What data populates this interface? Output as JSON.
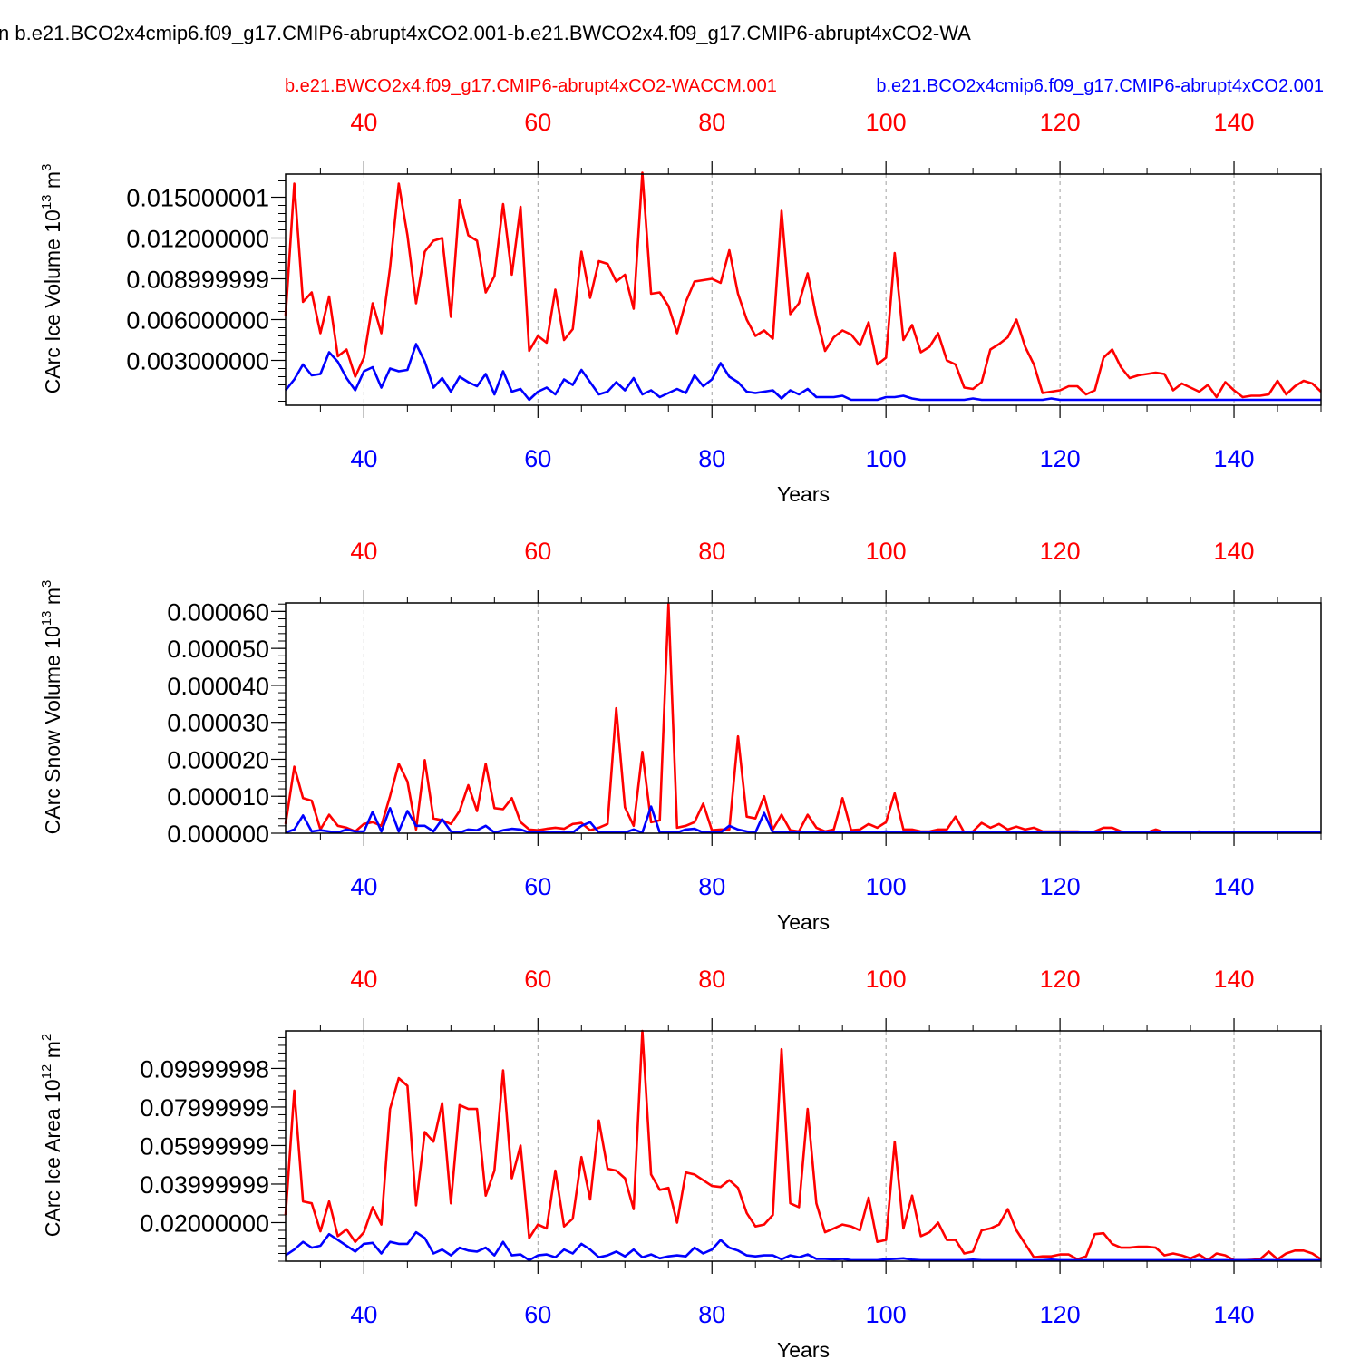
{
  "page": {
    "title": "n b.e21.BCO2x4cmip6.f09_g17.CMIP6-abrupt4xCO2.001-b.e21.BWCO2x4.f09_g17.CMIP6-abrupt4xCO2-WA",
    "legend_red": "b.e21.BWCO2x4.f09_g17.CMIP6-abrupt4xCO2-WACCM.001",
    "legend_blue": "b.e21.BCO2x4cmip6.f09_g17.CMIP6-abrupt4xCO2.001"
  },
  "colors": {
    "red": "#ff0000",
    "blue": "#0000ff",
    "axis": "#000000",
    "grid": "#a0a0a0"
  },
  "chart_data": [
    {
      "type": "line",
      "ylabel": "CArc Ice Volume 10",
      "ylabel_sup": "13",
      "ylabel_unit": " m",
      "ylabel_unit_sup": "3",
      "xlabel": "Years",
      "xlim": [
        31,
        150
      ],
      "ylim": [
        -0.0003,
        0.0167
      ],
      "x_ticks": [
        "40",
        "60",
        "80",
        "100",
        "120",
        "140"
      ],
      "x_tick_values": [
        40,
        60,
        80,
        100,
        120,
        140
      ],
      "y_tick_labels": [
        "0.015000001",
        "0.012000000",
        "0.008999999",
        "0.006000000",
        "0.003000000"
      ],
      "y_tick_values": [
        0.015,
        0.012,
        0.009,
        0.006,
        0.003
      ],
      "grid": "x dashed",
      "series": [
        {
          "name": "b.e21.BWCO2x4.f09_g17.CMIP6-abrupt4xCO2-WACCM.001",
          "color": "red",
          "axis": "top",
          "values": [
            0.0063,
            0.016,
            0.0073,
            0.008,
            0.005,
            0.0077,
            0.0033,
            0.0038,
            0.0018,
            0.0032,
            0.0072,
            0.005,
            0.0098,
            0.016,
            0.0122,
            0.0072,
            0.011,
            0.0118,
            0.012,
            0.0062,
            0.0148,
            0.0122,
            0.0118,
            0.008,
            0.0092,
            0.0145,
            0.0093,
            0.0143,
            0.0037,
            0.0048,
            0.0043,
            0.0082,
            0.0045,
            0.0053,
            0.011,
            0.0076,
            0.0103,
            0.0101,
            0.0088,
            0.0093,
            0.0068,
            0.0168,
            0.0079,
            0.008,
            0.007,
            0.005,
            0.0073,
            0.0088,
            0.0089,
            0.009,
            0.0087,
            0.0111,
            0.0079,
            0.006,
            0.0048,
            0.0052,
            0.0046,
            0.014,
            0.0064,
            0.0072,
            0.0094,
            0.0062,
            0.0037,
            0.0047,
            0.0052,
            0.0049,
            0.0041,
            0.0058,
            0.0027,
            0.0032,
            0.0109,
            0.0045,
            0.0056,
            0.0036,
            0.004,
            0.005,
            0.003,
            0.0027,
            0.001,
            0.0009,
            0.0014,
            0.0038,
            0.0042,
            0.0047,
            0.006,
            0.004,
            0.0027,
            0.0006,
            0.0007,
            0.0008,
            0.0011,
            0.0011,
            0.0005,
            0.0008,
            0.0032,
            0.0038,
            0.0025,
            0.0017,
            0.0019,
            0.002,
            0.0021,
            0.002,
            0.0008,
            0.0013,
            0.001,
            0.0007,
            0.0012,
            0.0003,
            0.0014,
            0.0008,
            0.0003,
            0.0004,
            0.0004,
            0.0005,
            0.0015,
            0.0005,
            0.0011,
            0.0015,
            0.0013,
            0.0007
          ]
        },
        {
          "name": "b.e21.BCO2x4cmip6.f09_g17.CMIP6-abrupt4xCO2.001",
          "color": "blue",
          "axis": "bottom",
          "values": [
            0.0008,
            0.0016,
            0.0027,
            0.0019,
            0.002,
            0.0036,
            0.0029,
            0.0017,
            0.0008,
            0.0022,
            0.0025,
            0.001,
            0.0024,
            0.0022,
            0.0023,
            0.0042,
            0.0029,
            0.001,
            0.0017,
            0.0007,
            0.0018,
            0.0014,
            0.0011,
            0.002,
            0.0005,
            0.0022,
            0.0007,
            0.0009,
            0.0001,
            0.0007,
            0.001,
            0.0005,
            0.0016,
            0.0012,
            0.0023,
            0.0014,
            0.0005,
            0.0007,
            0.0014,
            0.0008,
            0.0017,
            0.0005,
            0.0008,
            0.0003,
            0.0006,
            0.0009,
            0.0006,
            0.0019,
            0.0011,
            0.0016,
            0.0028,
            0.0018,
            0.0014,
            0.0007,
            0.0006,
            0.0007,
            0.0008,
            0.0002,
            0.0008,
            0.0005,
            0.0009,
            0.0003,
            0.0003,
            0.0003,
            0.0004,
            0.0001,
            0.0001,
            0.0001,
            0.0001,
            0.0003,
            0.0003,
            0.0004,
            0.0002,
            0.0001,
            0.0001,
            0.0001,
            0.0001,
            0.0001,
            0.0001,
            0.0002,
            0.0001,
            0.0001,
            0.0001,
            0.0001,
            0.0001,
            0.0001,
            0.0001,
            0.0001,
            0.0002,
            0.0001,
            0.0001,
            0.0001,
            0.0001,
            0.0001,
            0.0001,
            0.0001,
            0.0001,
            0.0001,
            0.0001,
            0.0001,
            0.0001,
            0.0001,
            0.0001,
            0.0001,
            0.0001,
            0.0001,
            0.0001,
            0.0001,
            0.0001,
            0.0001,
            0.0001,
            0.0001,
            0.0001,
            0.0001,
            0.0001,
            0.0001,
            0.0001,
            0.0001,
            0.0001,
            0.0001
          ]
        }
      ]
    },
    {
      "type": "line",
      "ylabel": "CArc Snow Volume 10",
      "ylabel_sup": "13",
      "ylabel_unit": " m",
      "ylabel_unit_sup": "3",
      "xlabel": "Years",
      "xlim": [
        31,
        150
      ],
      "ylim": [
        0,
        6.23e-05
      ],
      "x_ticks": [
        "40",
        "60",
        "80",
        "100",
        "120",
        "140"
      ],
      "x_tick_values": [
        40,
        60,
        80,
        100,
        120,
        140
      ],
      "y_tick_labels": [
        "0.000060",
        "0.000050",
        "0.000040",
        "0.000030",
        "0.000020",
        "0.000010",
        "0.000000"
      ],
      "y_tick_values": [
        6e-05,
        5e-05,
        4e-05,
        3e-05,
        2e-05,
        1e-05,
        0
      ],
      "grid": "x dashed",
      "series": [
        {
          "name": "b.e21.BWCO2x4.f09_g17.CMIP6-abrupt4xCO2-WACCM.001",
          "color": "red",
          "axis": "top",
          "values": [
            2.5e-06,
            1.8e-05,
            9.5e-06,
            8.8e-06,
            1e-06,
            5e-06,
            2e-06,
            1.5e-06,
            5e-07,
            2.5e-06,
            3e-06,
            2e-06,
            1e-05,
            1.88e-05,
            1.4e-05,
            1e-06,
            1.98e-05,
            4e-06,
            3.5e-06,
            2.5e-06,
            6e-06,
            1.3e-05,
            6e-06,
            1.88e-05,
            6.8e-06,
            6.5e-06,
            9.5e-06,
            3e-06,
            1e-06,
            8e-07,
            1.2e-06,
            1.5e-06,
            1.2e-06,
            2.5e-06,
            2.8e-06,
            8e-07,
            1.5e-06,
            2.5e-06,
            3.38e-05,
            7e-06,
            2e-06,
            2.2e-05,
            3e-06,
            3.5e-06,
            6.2e-05,
            1.5e-06,
            2e-06,
            3e-06,
            8e-06,
            8e-07,
            1e-06,
            1e-06,
            2.62e-05,
            4.5e-06,
            4e-06,
            1e-05,
            1e-06,
            5e-06,
            8e-07,
            5e-07,
            5e-06,
            1.5e-06,
            5e-07,
            1e-06,
            9.5e-06,
            8e-07,
            1e-06,
            2.5e-06,
            1.5e-06,
            3e-06,
            1.08e-05,
            1e-06,
            1e-06,
            5e-07,
            5e-07,
            1e-06,
            1e-06,
            4.5e-06,
            2e-07,
            5e-07,
            2.8e-06,
            1.5e-06,
            2.5e-06,
            1e-06,
            1.8e-06,
            1e-06,
            1.5e-06,
            5e-07,
            5e-07,
            5e-07,
            5e-07,
            5e-07,
            3e-07,
            5e-07,
            1.5e-06,
            1.5e-06,
            5e-07,
            3e-07,
            2e-07,
            2e-07,
            1e-06,
            2e-07,
            2e-07,
            2e-07,
            2e-07,
            5e-07,
            2e-07,
            2e-07,
            3e-07,
            2e-07,
            2e-07,
            2e-07,
            2e-07,
            2e-07,
            2e-07,
            2e-07,
            2e-07,
            2e-07,
            2e-07,
            2e-07
          ]
        },
        {
          "name": "b.e21.BCO2x4cmip6.f09_g17.CMIP6-abrupt4xCO2.001",
          "color": "blue",
          "axis": "bottom",
          "values": [
            2e-07,
            1e-06,
            4.8e-06,
            5e-07,
            8e-07,
            5e-07,
            2e-07,
            1e-06,
            5e-07,
            5e-07,
            5.8e-06,
            5e-07,
            6.8e-06,
            5e-07,
            6e-06,
            2e-06,
            2e-06,
            5e-07,
            3.8e-06,
            5e-07,
            2e-07,
            1e-06,
            8e-07,
            2e-06,
            2e-07,
            8e-07,
            1.2e-06,
            1e-06,
            2e-07,
            2e-07,
            2e-07,
            2e-07,
            2e-07,
            2e-07,
            2e-06,
            3e-06,
            2e-07,
            2e-07,
            2e-07,
            2e-07,
            1e-06,
            2e-07,
            7.2e-06,
            2e-07,
            2e-07,
            2e-07,
            1e-06,
            1.2e-06,
            2e-07,
            2e-07,
            2e-07,
            2e-06,
            1e-06,
            5e-07,
            2e-07,
            5.5e-06,
            2e-07,
            2e-07,
            2e-07,
            2e-07,
            2e-07,
            2e-07,
            2e-07,
            2e-07,
            2e-07,
            2e-07,
            2e-07,
            2e-07,
            2e-07,
            5e-07,
            2e-07,
            2e-07,
            2e-07,
            2e-07,
            2e-07,
            2e-07,
            2e-07,
            2e-07,
            2e-07,
            2e-07,
            2e-07,
            2e-07,
            2e-07,
            2e-07,
            2e-07,
            2e-07,
            2e-07,
            2e-07,
            2e-07,
            2e-07,
            2e-07,
            2e-07,
            2e-07,
            2e-07,
            2e-07,
            2e-07,
            2e-07,
            2e-07,
            2e-07,
            2e-07,
            2e-07,
            2e-07,
            2e-07,
            2e-07,
            2e-07,
            2e-07,
            2e-07,
            2e-07,
            2e-07,
            2e-07,
            2e-07,
            2e-07,
            2e-07,
            2e-07,
            2e-07,
            2e-07,
            2e-07,
            2e-07,
            2e-07,
            2e-07
          ]
        }
      ]
    },
    {
      "type": "line",
      "ylabel": "CArc Ice Area 10",
      "ylabel_sup": "12",
      "ylabel_unit": " m",
      "ylabel_unit_sup": "2",
      "xlabel": "Years",
      "xlim": [
        31,
        150
      ],
      "ylim": [
        0,
        0.1195
      ],
      "x_ticks": [
        "40",
        "60",
        "80",
        "100",
        "120",
        "140"
      ],
      "x_tick_values": [
        40,
        60,
        80,
        100,
        120,
        140
      ],
      "y_tick_labels": [
        "0.09999998",
        "0.07999999",
        "0.05999999",
        "0.03999999",
        "0.02000000"
      ],
      "y_tick_values": [
        0.1,
        0.08,
        0.06,
        0.04,
        0.02
      ],
      "grid": "x dashed",
      "series": [
        {
          "name": "b.e21.BWCO2x4.f09_g17.CMIP6-abrupt4xCO2-WACCM.001",
          "color": "red",
          "axis": "top",
          "values": [
            0.024,
            0.0885,
            0.031,
            0.03,
            0.0155,
            0.031,
            0.013,
            0.0165,
            0.01,
            0.015,
            0.028,
            0.019,
            0.079,
            0.095,
            0.091,
            0.029,
            0.067,
            0.062,
            0.082,
            0.03,
            0.081,
            0.079,
            0.079,
            0.034,
            0.047,
            0.099,
            0.043,
            0.06,
            0.012,
            0.019,
            0.017,
            0.047,
            0.018,
            0.022,
            0.054,
            0.032,
            0.073,
            0.048,
            0.047,
            0.043,
            0.027,
            0.1195,
            0.045,
            0.037,
            0.038,
            0.02,
            0.046,
            0.045,
            0.042,
            0.039,
            0.0385,
            0.042,
            0.038,
            0.025,
            0.018,
            0.019,
            0.024,
            0.11,
            0.03,
            0.028,
            0.079,
            0.03,
            0.015,
            0.017,
            0.019,
            0.018,
            0.016,
            0.033,
            0.01,
            0.011,
            0.062,
            0.017,
            0.034,
            0.013,
            0.015,
            0.02,
            0.011,
            0.011,
            0.004,
            0.005,
            0.016,
            0.017,
            0.019,
            0.027,
            0.016,
            0.009,
            0.002,
            0.0025,
            0.0025,
            0.0035,
            0.0035,
            0.001,
            0.0025,
            0.014,
            0.0145,
            0.009,
            0.007,
            0.007,
            0.0075,
            0.0075,
            0.007,
            0.003,
            0.004,
            0.003,
            0.0015,
            0.0035,
            0.0005,
            0.004,
            0.003,
            0.0005,
            0.0005,
            0.0007,
            0.001,
            0.005,
            0.001,
            0.004,
            0.0055,
            0.0055,
            0.004,
            0.001
          ]
        },
        {
          "name": "b.e21.BCO2x4cmip6.f09_g17.CMIP6-abrupt4xCO2.001",
          "color": "blue",
          "axis": "bottom",
          "values": [
            0.003,
            0.006,
            0.01,
            0.007,
            0.008,
            0.014,
            0.011,
            0.008,
            0.005,
            0.009,
            0.0095,
            0.004,
            0.01,
            0.009,
            0.009,
            0.015,
            0.012,
            0.004,
            0.006,
            0.003,
            0.007,
            0.0055,
            0.005,
            0.007,
            0.003,
            0.01,
            0.003,
            0.0035,
            0.0005,
            0.003,
            0.0035,
            0.002,
            0.006,
            0.004,
            0.009,
            0.006,
            0.002,
            0.003,
            0.005,
            0.0025,
            0.006,
            0.002,
            0.0035,
            0.0015,
            0.0025,
            0.003,
            0.0025,
            0.007,
            0.004,
            0.006,
            0.011,
            0.007,
            0.0055,
            0.003,
            0.0025,
            0.003,
            0.003,
            0.001,
            0.003,
            0.002,
            0.0035,
            0.0012,
            0.0012,
            0.001,
            0.0012,
            0.0005,
            0.0005,
            0.0005,
            0.0005,
            0.001,
            0.0012,
            0.0015,
            0.0008,
            0.0005,
            0.0005,
            0.0005,
            0.0005,
            0.0005,
            0.0005,
            0.0008,
            0.0005,
            0.0005,
            0.0005,
            0.0005,
            0.0005,
            0.0005,
            0.0005,
            0.0005,
            0.0008,
            0.0005,
            0.0005,
            0.0005,
            0.0005,
            0.0005,
            0.0005,
            0.0005,
            0.0005,
            0.0005,
            0.0005,
            0.0005,
            0.0005,
            0.0005,
            0.0005,
            0.0005,
            0.0005,
            0.0005,
            0.0005,
            0.0005,
            0.0005,
            0.0005,
            0.0005,
            0.0005,
            0.0005,
            0.0005,
            0.0005,
            0.0005,
            0.0005,
            0.0005,
            0.0005,
            0.0005
          ]
        }
      ]
    }
  ]
}
